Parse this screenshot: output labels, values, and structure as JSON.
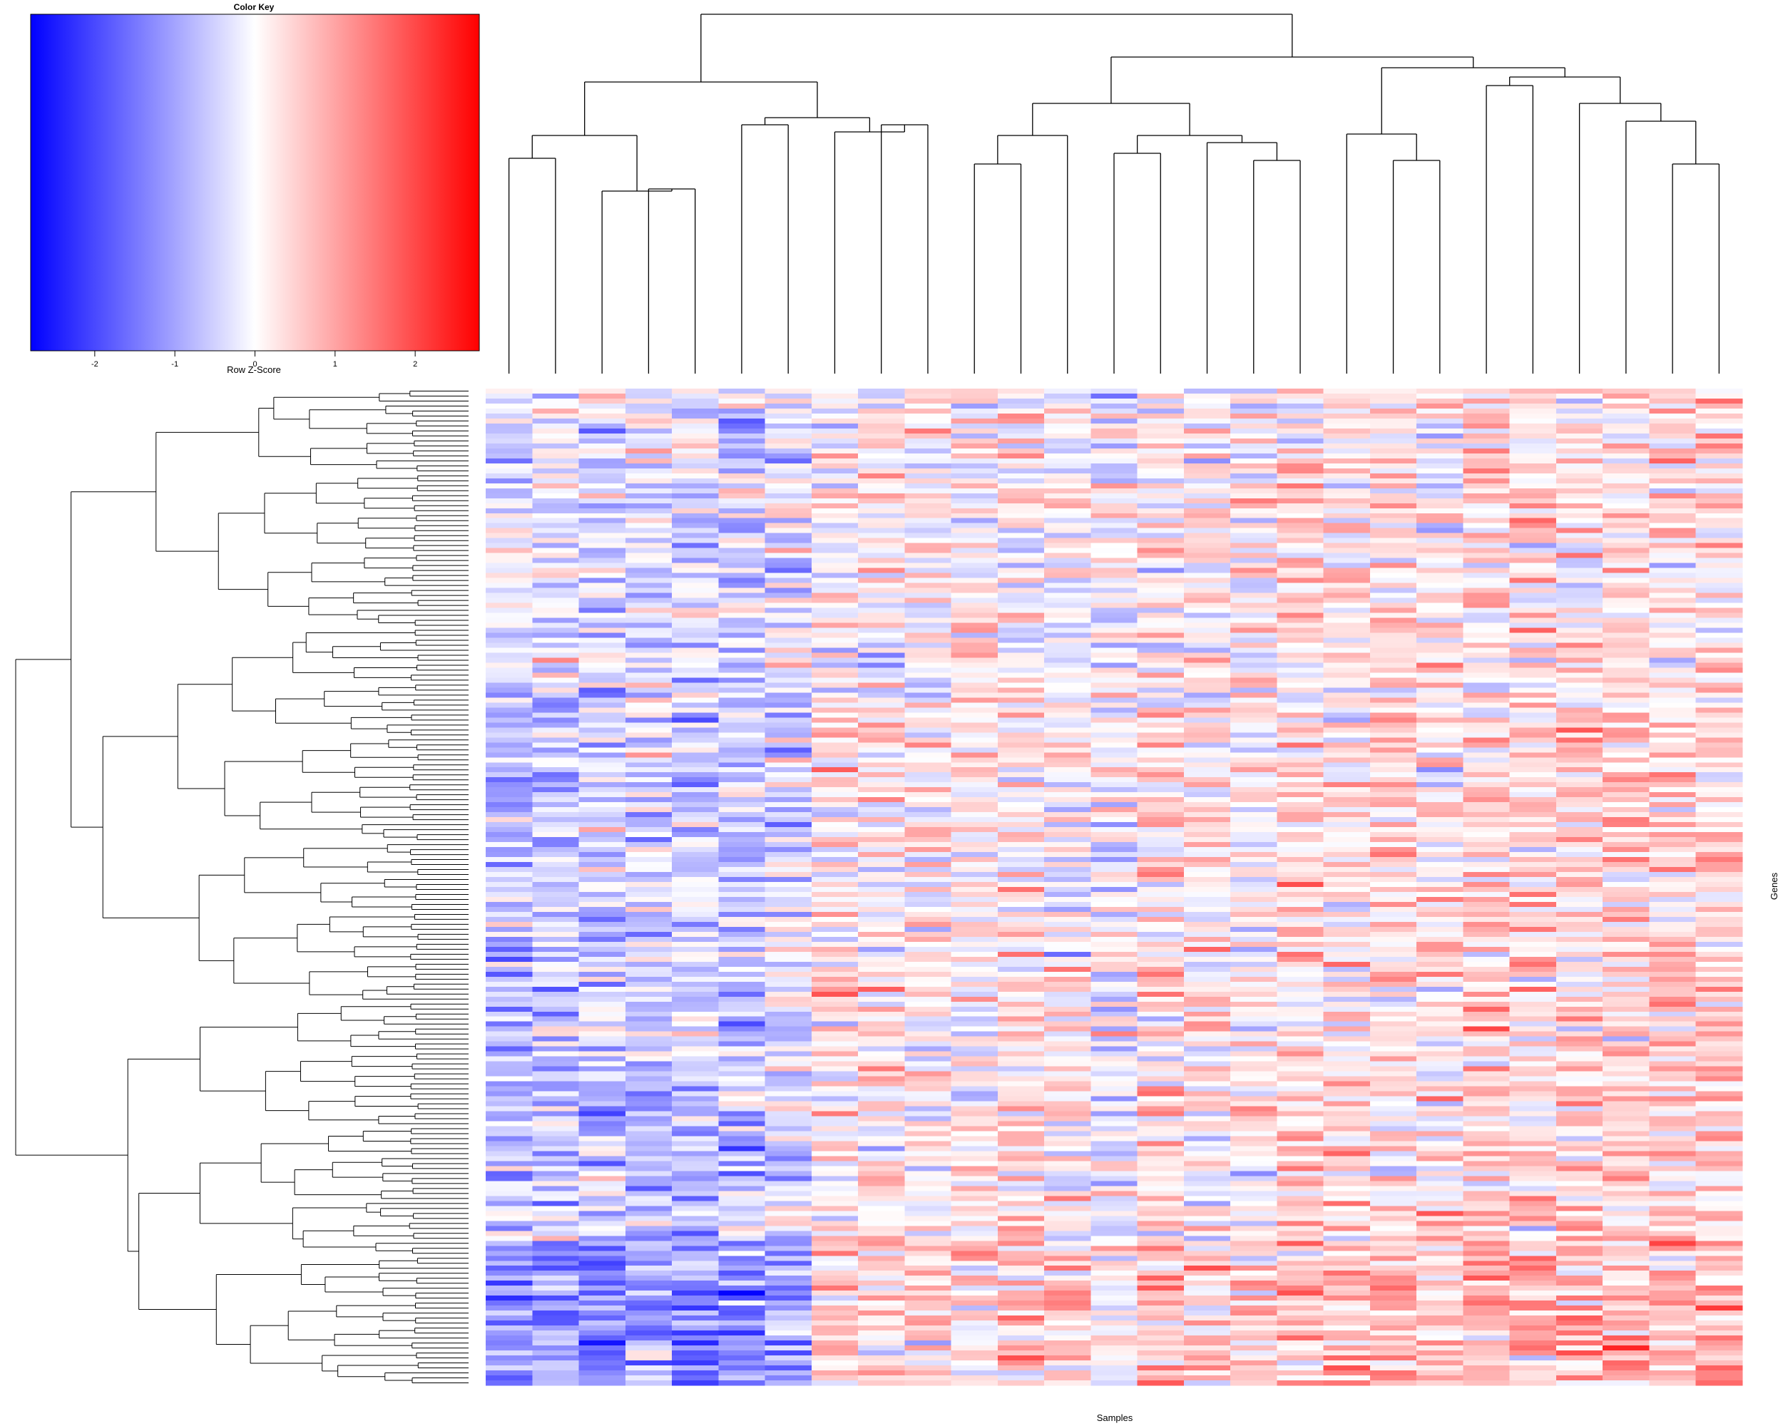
{
  "chart_data": [
    {
      "type": "heatmap",
      "title": "",
      "xlabel": "Samples",
      "ylabel": "Genes",
      "columns": 27,
      "rows": 200,
      "color_scale": {
        "low": "#0000ff",
        "mid": "#ffffff",
        "high": "#ff0000"
      },
      "value_range": [
        -2.8,
        2.8
      ],
      "col_dendrogram": true,
      "row_dendrogram": true,
      "col_group_means": [
        -0.6,
        -0.5,
        -0.5,
        -0.4,
        -0.55,
        -0.55,
        -0.3,
        0.15,
        0.1,
        0.1,
        0.15,
        0.2,
        0.1,
        -0.1,
        0.25,
        0.25,
        0.05,
        0.4,
        0.35,
        0.35,
        0.25,
        0.4,
        0.35,
        0.4,
        0.45,
        0.35,
        0.45
      ]
    },
    {
      "type": "color-key",
      "title": "Color Key",
      "xlabel": "Row Z-Score",
      "ticks": [
        -2,
        -1,
        0,
        1,
        2
      ],
      "range": [
        -2.8,
        2.8
      ],
      "colors": {
        "low": "#0000ff",
        "mid": "#ffffff",
        "high": "#ff0000"
      }
    }
  ]
}
